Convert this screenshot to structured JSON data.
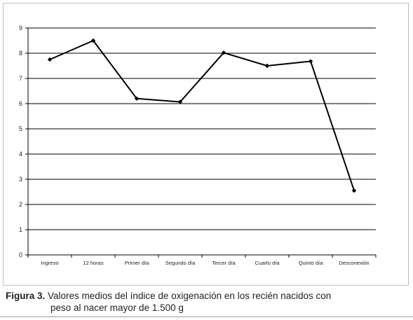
{
  "chart_data": {
    "type": "line",
    "categories": [
      "Ingreso",
      "12 horas",
      "Primer día",
      "Segundo día",
      "Tercer día",
      "Cuarto día",
      "Quinto día",
      "Desconexión"
    ],
    "series": [
      {
        "values": [
          7.75,
          8.5,
          6.2,
          6.07,
          8.02,
          7.5,
          7.68,
          2.55
        ]
      }
    ],
    "title": "",
    "xlabel": "",
    "ylabel": "",
    "ylim": [
      0,
      9
    ],
    "yticks": [
      "0",
      "1",
      "2",
      "3",
      "4",
      "5",
      "6",
      "7",
      "8",
      "9"
    ],
    "grid": true,
    "line_color": "#000000"
  },
  "caption": {
    "label": "Figura 3.",
    "line1": " Valores medios del índice de oxigenación en los recién nacidos con",
    "line2": "peso al nacer mayor de 1.500 g"
  }
}
